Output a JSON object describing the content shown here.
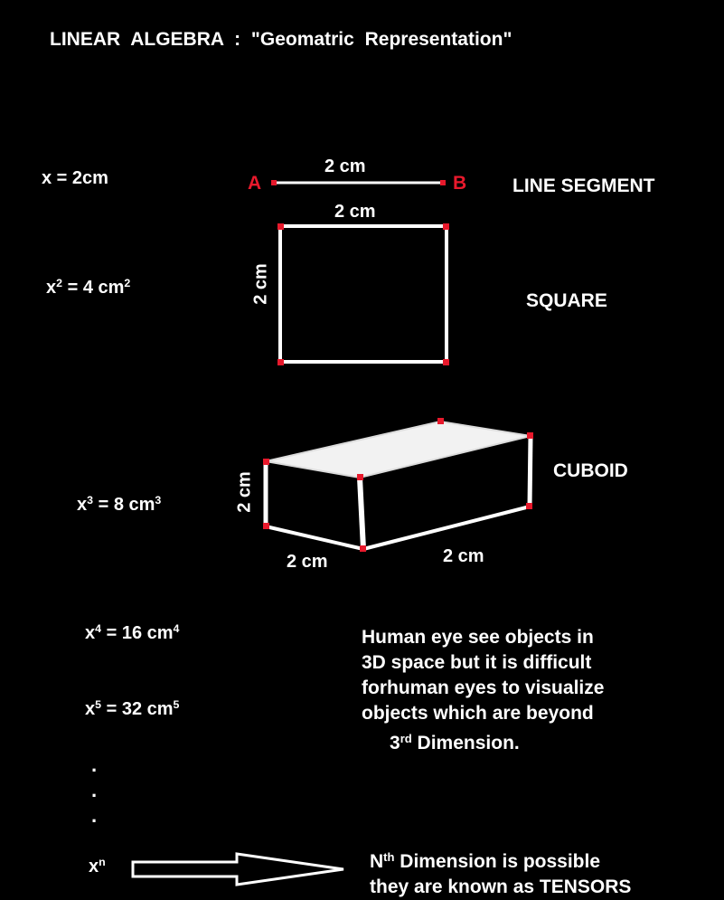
{
  "title": "LINEAR   ALGEBRA   :  \"Geomatric  Representation\"",
  "colors": {
    "background": "#000000",
    "stroke": "#ffffff",
    "vertex": "#e8192c"
  },
  "line_segment": {
    "equation": "x = 2cm",
    "point_a": "A",
    "point_b": "B",
    "length": "2 cm",
    "name": "LINE SEGMENT"
  },
  "square": {
    "equation_base": "x",
    "equation_exp": "2",
    "equation_rest": " = 4 cm",
    "equation_unit_exp": "2",
    "top_label": "2 cm",
    "side_label": "2 cm",
    "name": "SQUARE"
  },
  "cuboid": {
    "equation_base": "x",
    "equation_exp": "3",
    "equation_rest": " = 8 cm",
    "equation_unit_exp": "3",
    "height_label": "2 cm",
    "front_label": "2 cm",
    "depth_label": "2 cm",
    "name": "CUBOID"
  },
  "higher_dims": [
    {
      "base": "x",
      "exp": "4",
      "rest": " = 16 cm",
      "unit_exp": "4"
    },
    {
      "base": "x",
      "exp": "5",
      "rest": " = 32 cm",
      "unit_exp": "5"
    }
  ],
  "ellipsis": ".",
  "xn": {
    "base": "x",
    "exp": "n"
  },
  "note": {
    "line1": "Human eye see objects in",
    "line2": "3D space but it is difficult",
    "line3": "forhuman eyes to visualize",
    "line4": "objects which are beyond",
    "line5_num": "3",
    "line5_sup": "rd",
    "line5_rest": "   Dimension."
  },
  "tensor_note": {
    "line1_n": "N",
    "line1_sup": "th",
    "line1_rest": " Dimension is possible",
    "line2": "they are known as TENSORS"
  }
}
